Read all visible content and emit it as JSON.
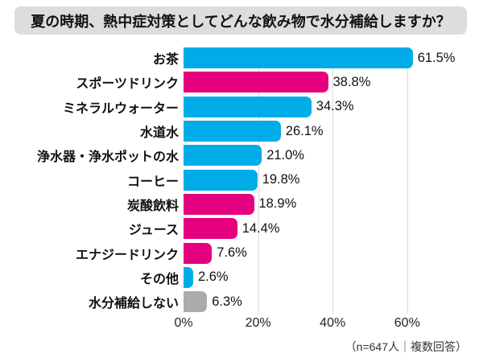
{
  "title": "夏の時期、熱中症対策としてどんな飲み物で水分補給しますか？",
  "footer_note": "（n=647人｜複数回答）",
  "palette": {
    "cyan": "#00ace8",
    "magenta": "#e4007f",
    "gray": "#ababab"
  },
  "chart_data": {
    "type": "bar",
    "orientation": "horizontal",
    "title": "夏の時期、熱中症対策としてどんな飲み物で水分補給しますか？",
    "categories": [
      "お茶",
      "スポーツドリンク",
      "ミネラルウォーター",
      "水道水",
      "浄水器・浄水ポットの水",
      "コーヒー",
      "炭酸飲料",
      "ジュース",
      "エナジードリンク",
      "その他",
      "水分補給しない"
    ],
    "values": [
      61.5,
      38.8,
      34.3,
      26.1,
      21.0,
      19.8,
      18.9,
      14.4,
      7.6,
      2.6,
      6.3
    ],
    "colors": [
      "cyan",
      "magenta",
      "cyan",
      "cyan",
      "cyan",
      "cyan",
      "magenta",
      "magenta",
      "magenta",
      "cyan",
      "gray"
    ],
    "value_labels": [
      "61.5%",
      "38.8%",
      "34.3%",
      "26.1%",
      "21.0%",
      "19.8%",
      "18.9%",
      "14.4%",
      "7.6%",
      "2.6%",
      "6.3%"
    ],
    "value_suffix": "%",
    "x_ticks": [
      0,
      20,
      40,
      60
    ],
    "x_tick_labels": [
      "0%",
      "20%",
      "40%",
      "60%"
    ],
    "xlim": [
      0,
      65
    ],
    "grid": "vertical-light",
    "legend": "none",
    "annotation": "（n=647人｜複数回答）"
  }
}
